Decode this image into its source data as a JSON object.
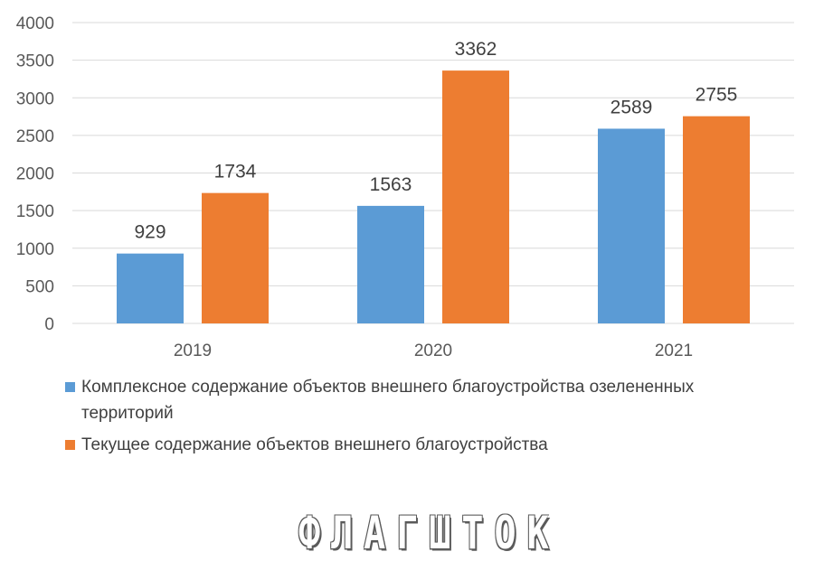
{
  "chart_data": {
    "type": "bar",
    "categories": [
      "2019",
      "2020",
      "2021"
    ],
    "series": [
      {
        "name": "Комплексное содержание объектов внешнего благоустройства озелененных территорий",
        "values": [
          929,
          1563,
          2589
        ],
        "color": "#5b9bd5"
      },
      {
        "name": "Текущее содержание объектов внешнего благоустройства",
        "values": [
          1734,
          3362,
          2755
        ],
        "color": "#ed7d31"
      }
    ],
    "yticks": [
      "0",
      "500",
      "1000",
      "1500",
      "2000",
      "2500",
      "3000",
      "3500",
      "4000"
    ],
    "ylim": [
      0,
      4000
    ],
    "grid": true,
    "legend_position": "bottom"
  },
  "legend": {
    "items": [
      {
        "label": "Комплексное содержание объектов внешнего благоустройства озелененных территорий",
        "color": "#5b9bd5"
      },
      {
        "label": "Текущее содержание объектов внешнего благоустройства",
        "color": "#ed7d31"
      }
    ]
  },
  "watermark": "ФЛАГШТОК"
}
